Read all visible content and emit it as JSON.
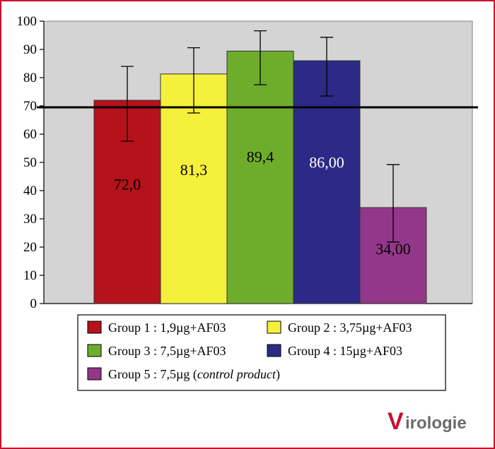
{
  "chart_data": {
    "type": "bar",
    "ylim": [
      0,
      100
    ],
    "yticks": [
      "0",
      "10",
      "20",
      "30",
      "40",
      "50",
      "60",
      "70",
      "80",
      "90",
      "100"
    ],
    "categories": [
      "Group 1",
      "Group 2",
      "Group 3",
      "Group 4",
      "Group 5"
    ],
    "values": [
      72.0,
      81.3,
      89.4,
      86.0,
      34.0
    ],
    "labels": [
      "72,0",
      "81,3",
      "89,4",
      "86,00",
      "34,00"
    ],
    "error_low": [
      57.5,
      67.5,
      77.5,
      73.5,
      21.8
    ],
    "error_high": [
      84.0,
      90.6,
      96.6,
      94.3,
      49.2
    ],
    "colors": [
      "#b5121b",
      "#f5f03c",
      "#6ead2c",
      "#2c2a86",
      "#93378a"
    ],
    "label_colors": [
      "#000000",
      "#000000",
      "#000000",
      "#ffffff",
      "#000000"
    ],
    "reference_line": 69.5,
    "plot_background": "#d4d4d4",
    "grid": false,
    "legend_position": "bottom",
    "legend": [
      {
        "prefix": "Group 1 : 1,9µg+AF03",
        "italic": "",
        "suffix": ""
      },
      {
        "prefix": "Group 2 : 3,75µg+AF03",
        "italic": "",
        "suffix": ""
      },
      {
        "prefix": "Group 3 : 7,5µg+AF03",
        "italic": "",
        "suffix": ""
      },
      {
        "prefix": "Group 4 : 15µg+AF03",
        "italic": "",
        "suffix": ""
      },
      {
        "prefix": "Group 5 : 7,5µg (",
        "italic": "control product",
        "suffix": ")"
      }
    ]
  },
  "logo": {
    "initial": "V",
    "rest": "irologie"
  },
  "accent_color": "#c8102e"
}
